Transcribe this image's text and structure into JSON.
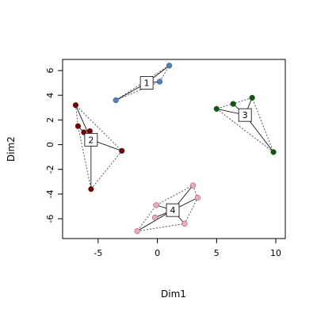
{
  "chart_data": {
    "type": "scatter",
    "title": "",
    "xlabel": "Dim1",
    "ylabel": "Dim2",
    "xlim": [
      -8,
      10.8
    ],
    "ylim": [
      -7.6,
      6.9
    ],
    "x_ticks": [
      -5,
      0,
      5,
      10
    ],
    "y_ticks": [
      -6,
      -4,
      -2,
      0,
      2,
      4,
      6
    ],
    "grid": false,
    "legend": "none",
    "clusters": [
      {
        "label": "1",
        "color": "#4F81BD",
        "center": [
          -0.9,
          5.0
        ],
        "points": [
          [
            -3.5,
            3.6
          ],
          [
            0.2,
            5.1
          ],
          [
            1.0,
            6.4
          ]
        ]
      },
      {
        "label": "2",
        "color": "#7B0000",
        "center": [
          -5.6,
          0.4
        ],
        "points": [
          [
            -6.9,
            3.2
          ],
          [
            -6.7,
            1.5
          ],
          [
            -6.2,
            1.0
          ],
          [
            -5.7,
            1.1
          ],
          [
            -3.0,
            -0.5
          ],
          [
            -5.6,
            -3.6
          ]
        ]
      },
      {
        "label": "3",
        "color": "#0B5A0B",
        "center": [
          7.4,
          2.4
        ],
        "points": [
          [
            5.0,
            2.9
          ],
          [
            6.4,
            3.3
          ],
          [
            8.0,
            3.8
          ],
          [
            9.8,
            -0.6
          ]
        ]
      },
      {
        "label": "4",
        "color": "#F4A6C1",
        "center": [
          1.3,
          -5.3
        ],
        "points": [
          [
            -1.7,
            -7.0
          ],
          [
            -0.2,
            -5.9
          ],
          [
            -0.1,
            -4.9
          ],
          [
            2.3,
            -6.4
          ],
          [
            3.0,
            -3.3
          ],
          [
            3.4,
            -4.3
          ]
        ]
      }
    ]
  }
}
